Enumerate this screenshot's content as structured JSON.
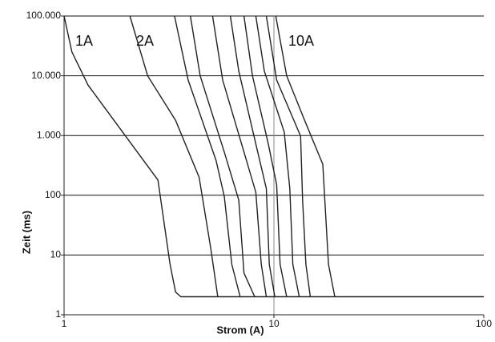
{
  "chart_data": {
    "type": "line",
    "x_label": "Strom (A)",
    "y_label": "Zeit (ms)",
    "annotations": [
      "1A",
      "2A",
      "10A"
    ],
    "xlim": [
      1,
      100
    ],
    "ylim": [
      1,
      100000
    ],
    "x_log": true,
    "y_log": true,
    "xticks": [
      1,
      10,
      100
    ],
    "yticks": [
      1,
      10,
      100,
      {
        "value": 1000,
        "label": "1.000"
      },
      {
        "value": 10000,
        "label": "10.000"
      },
      {
        "value": 100000,
        "label": "100.000"
      }
    ],
    "grid": true,
    "color": "#222222",
    "series": [
      {
        "x": [
          1,
          1.09,
          1.3,
          1.85,
          2.8,
          3.2,
          3.4,
          3.6,
          100
        ],
        "values": [
          100000,
          25000,
          7000,
          1300,
          180,
          7,
          2.4,
          2,
          2
        ]
      },
      {
        "x": [
          2.06,
          2.5,
          3.4,
          4.4,
          5,
          5.4
        ],
        "values": [
          100000,
          10000,
          1800,
          200,
          13,
          2
        ]
      },
      {
        "x": [
          3.36,
          3.9,
          5.3,
          5.8,
          6.3,
          6.9
        ],
        "values": [
          100000,
          8500,
          380,
          96,
          7,
          2
        ]
      },
      {
        "x": [
          4.0,
          4.45,
          5.8,
          6.8,
          7.2,
          8.1
        ],
        "values": [
          100000,
          10000,
          530,
          83,
          5,
          2
        ]
      },
      {
        "x": [
          5.1,
          5.7,
          7.2,
          8.2,
          8.7,
          9.2
        ],
        "values": [
          100000,
          8500,
          530,
          112,
          7,
          2
        ]
      },
      {
        "x": [
          6.2,
          6.8,
          8.2,
          9.2,
          9.5,
          10.1
        ],
        "values": [
          100000,
          12000,
          720,
          130,
          7,
          2
        ]
      },
      {
        "x": [
          7.2,
          7.9,
          9.4,
          10.3,
          10.7,
          11.5
        ],
        "values": [
          100000,
          10000,
          720,
          150,
          7,
          2
        ]
      },
      {
        "x": [
          8.2,
          9.0,
          11.2,
          11.9,
          12.3,
          13.2
        ],
        "values": [
          100000,
          12000,
          1140,
          130,
          7,
          2
        ]
      },
      {
        "x": [
          9.2,
          10.3,
          13.4,
          13.7,
          14.2,
          14.9
        ],
        "values": [
          100000,
          8500,
          980,
          82,
          7,
          2
        ]
      },
      {
        "x": [
          10.2,
          11.5,
          14,
          17.1,
          18.2,
          19.5
        ],
        "values": [
          100000,
          10000,
          1800,
          330,
          7,
          2
        ]
      }
    ]
  }
}
